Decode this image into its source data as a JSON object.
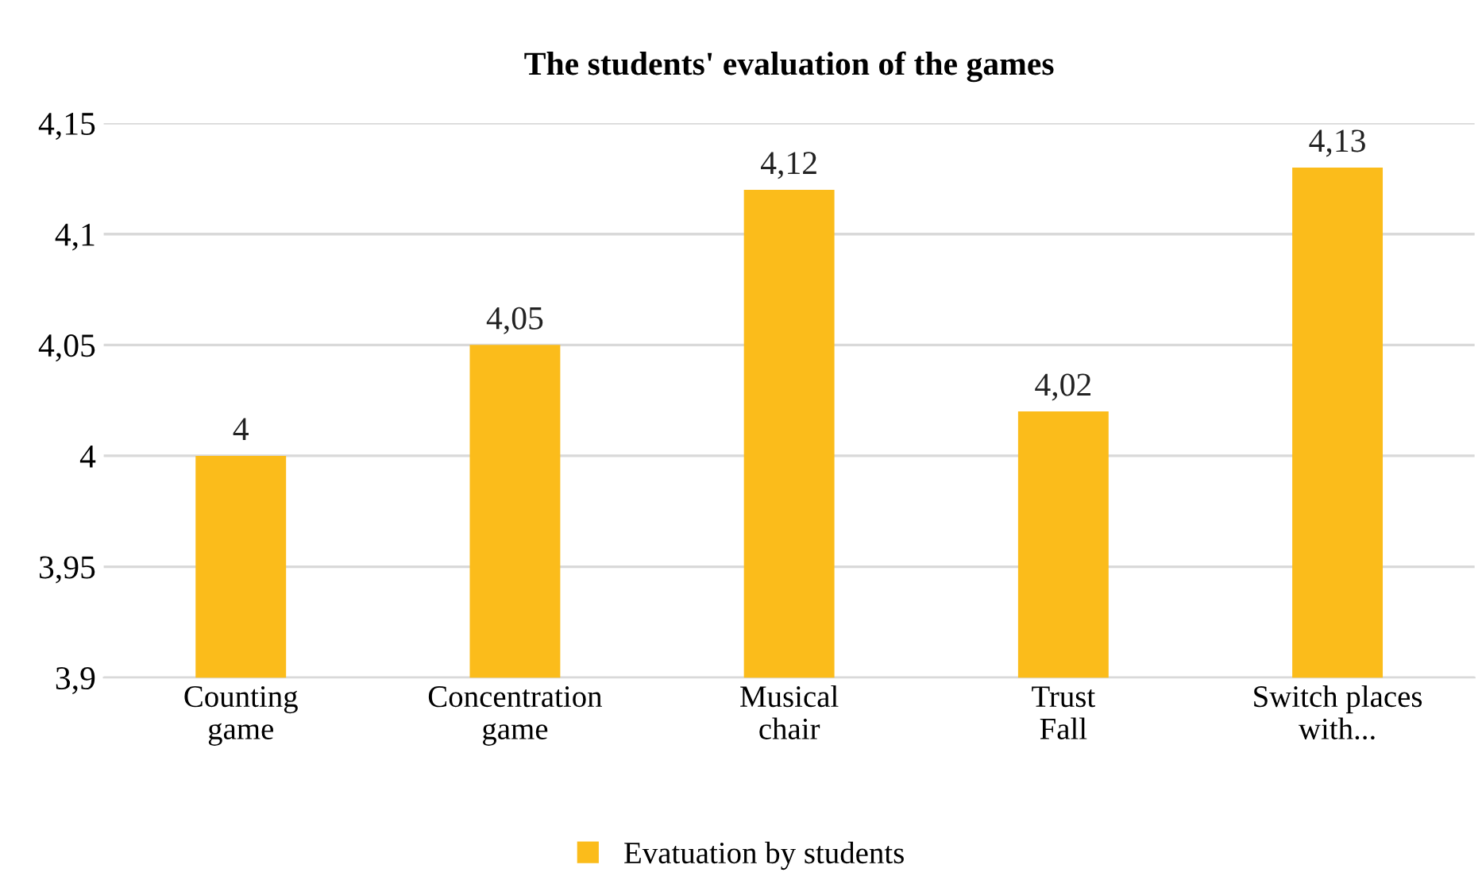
{
  "chart_data": {
    "type": "bar",
    "title": "The students' evaluation of the games",
    "categories": [
      "Counting\ngame",
      "Concentration\ngame",
      "Musical\nchair",
      "Trust\nFall",
      "Switch places\nwith..."
    ],
    "series": [
      {
        "name": "Evatuation by students",
        "color": "#fbbc1b",
        "values": [
          4.0,
          4.05,
          4.12,
          4.02,
          4.13
        ],
        "value_labels": [
          "4",
          "4,05",
          "4,12",
          "4,02",
          "4,13"
        ]
      }
    ],
    "ylim": [
      3.9,
      4.15
    ],
    "yticks": [
      {
        "value": 3.9,
        "label": "3,9"
      },
      {
        "value": 3.95,
        "label": "3,95"
      },
      {
        "value": 4.0,
        "label": "4"
      },
      {
        "value": 4.05,
        "label": "4,05"
      },
      {
        "value": 4.1,
        "label": "4,1"
      },
      {
        "value": 4.15,
        "label": "4,15"
      }
    ],
    "grid": "y",
    "legend": "bottom"
  }
}
